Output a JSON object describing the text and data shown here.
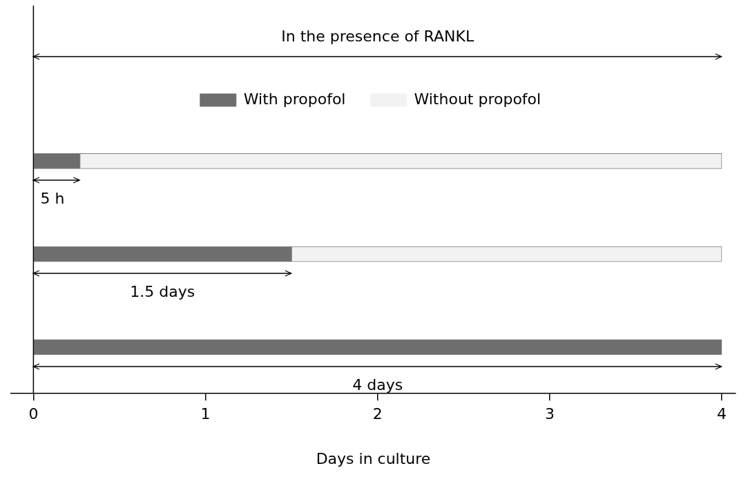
{
  "chart_data": {
    "type": "bar",
    "orientation": "horizontal",
    "stacked": true,
    "xlabel": "Days in culture",
    "categories": [
      null,
      null,
      null
    ],
    "series": [
      {
        "name": "With propofol",
        "color": "#6e6e6e",
        "values": [
          0.27,
          1.5,
          4
        ]
      },
      {
        "name": "Without propofol",
        "color": "#f2f2f2",
        "values": [
          3.73,
          2.5,
          0
        ]
      }
    ],
    "xlim": [
      -0.13,
      4.08
    ],
    "xticks": [
      0,
      1,
      2,
      3,
      4
    ],
    "legend": "top",
    "ref_lines": [
      {
        "axis": "x",
        "value": 0
      }
    ],
    "annotations": [
      "In the presence of RANKL",
      "5 h",
      "1.5 days",
      "4 days"
    ]
  }
}
